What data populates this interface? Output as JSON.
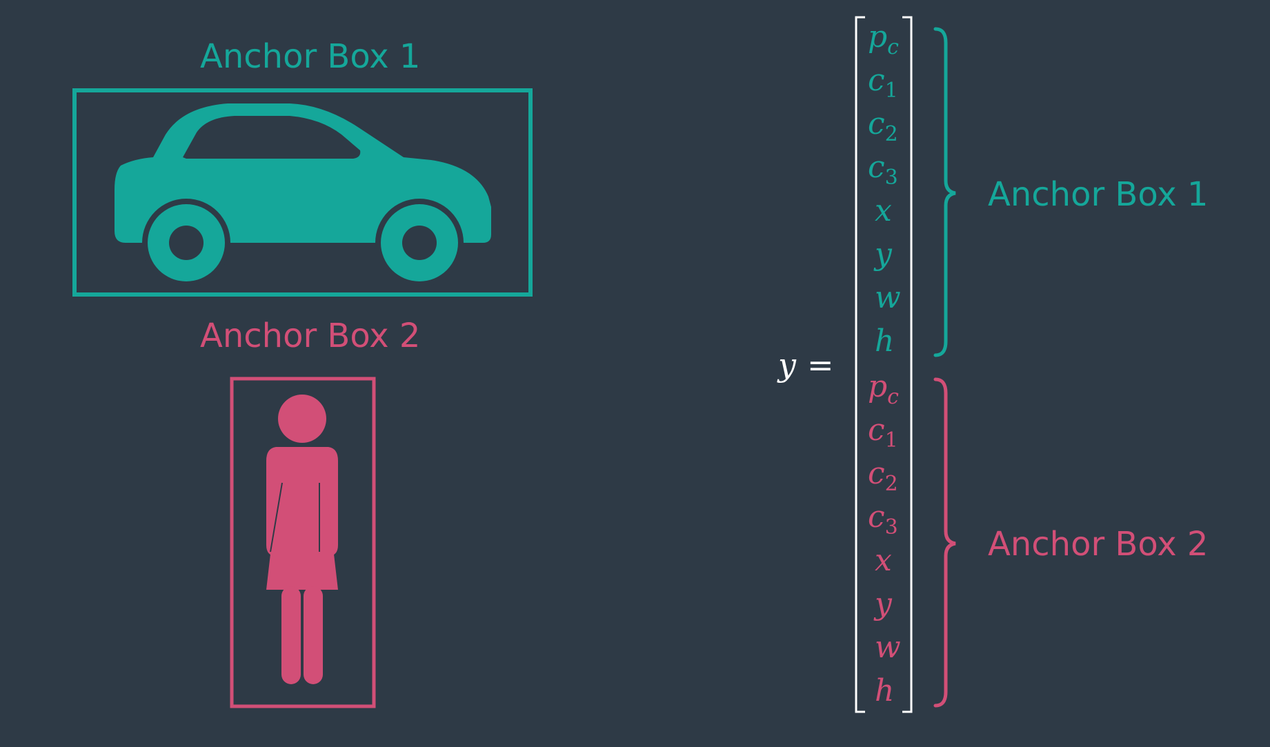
{
  "colors": {
    "background": "#2e3a46",
    "teal": "#15a79a",
    "pink": "#d24f77",
    "bracket": "#ffffff",
    "equation": "#ffffff"
  },
  "icons": {
    "car": "car-icon",
    "person": "woman-icon"
  },
  "left": {
    "anchor1_title": "Anchor Box 1",
    "anchor2_title": "Anchor Box 2"
  },
  "equation": {
    "lhs": "y",
    "equals": "="
  },
  "vector": {
    "group1": [
      {
        "base": "p",
        "sub": "c"
      },
      {
        "base": "c",
        "sub": "1"
      },
      {
        "base": "c",
        "sub": "2"
      },
      {
        "base": "c",
        "sub": "3"
      },
      {
        "base": "x",
        "sub": ""
      },
      {
        "base": "y",
        "sub": ""
      },
      {
        "base": "w",
        "sub": ""
      },
      {
        "base": "h",
        "sub": ""
      }
    ],
    "group2": [
      {
        "base": "p",
        "sub": "c"
      },
      {
        "base": "c",
        "sub": "1"
      },
      {
        "base": "c",
        "sub": "2"
      },
      {
        "base": "c",
        "sub": "3"
      },
      {
        "base": "x",
        "sub": ""
      },
      {
        "base": "y",
        "sub": ""
      },
      {
        "base": "w",
        "sub": ""
      },
      {
        "base": "h",
        "sub": ""
      }
    ]
  },
  "right": {
    "anchor1_label": "Anchor Box 1",
    "anchor2_label": "Anchor Box 2"
  }
}
